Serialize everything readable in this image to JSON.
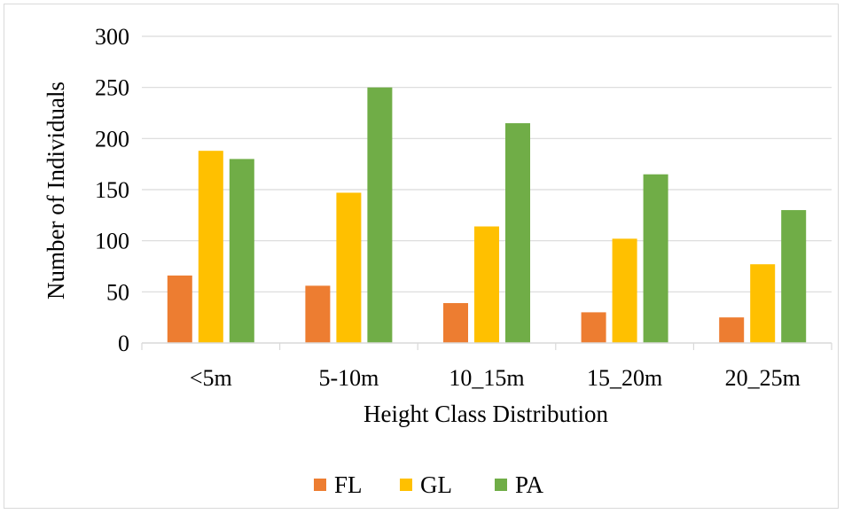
{
  "chart_data": {
    "type": "bar",
    "title": "",
    "xlabel": "Height Class Distribution",
    "ylabel": "Number of Individuals",
    "categories": [
      "<5m",
      "5-10m",
      "10_15m",
      "15_20m",
      "20_25m"
    ],
    "series": [
      {
        "name": "FL",
        "color": "#ED7D31",
        "values": [
          66,
          56,
          39,
          30,
          25
        ]
      },
      {
        "name": "GL",
        "color": "#FFC000",
        "values": [
          188,
          147,
          114,
          102,
          77
        ]
      },
      {
        "name": "PA",
        "color": "#70AD47",
        "values": [
          180,
          250,
          215,
          165,
          130
        ]
      }
    ],
    "ylim": [
      0,
      300
    ],
    "yticks": [
      "0",
      "50",
      "100",
      "150",
      "200",
      "250",
      "300"
    ],
    "grid": true,
    "legend": "bottom"
  }
}
